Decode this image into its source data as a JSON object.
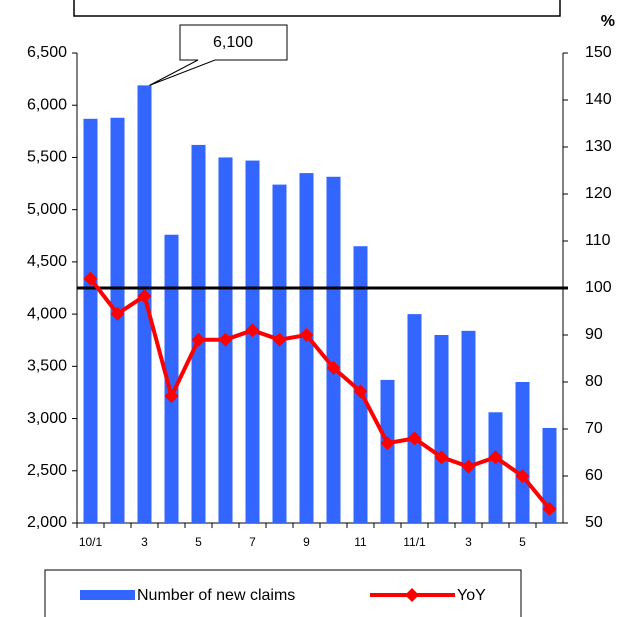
{
  "chart_data": {
    "type": "bar",
    "categories": [
      "10/1",
      null,
      "3",
      null,
      "5",
      null,
      "7",
      null,
      "9",
      null,
      "11",
      null,
      "11/1",
      null,
      "3",
      null,
      "5",
      null
    ],
    "series": [
      {
        "name": "Number of new claims",
        "color": "#3366ff",
        "type": "bar",
        "values": [
          5870,
          5880,
          6190,
          4760,
          5620,
          5500,
          5470,
          5240,
          5350,
          5315,
          4650,
          3370,
          4000,
          3800,
          3840,
          3060,
          3350,
          2910
        ]
      },
      {
        "name": "YoY",
        "color": "#ff0000",
        "type": "line",
        "axis": "y2",
        "values": [
          102,
          94.5,
          98.3,
          77,
          89,
          89,
          91,
          89,
          90,
          83,
          78,
          67,
          68,
          64,
          62,
          64,
          60,
          53
        ]
      }
    ],
    "ylim": [
      2000,
      6500
    ],
    "yticks": [
      {
        "value": 2000,
        "label": "2,000"
      },
      {
        "value": 2500,
        "label": "2,500"
      },
      {
        "value": 3000,
        "label": "3,000"
      },
      {
        "value": 3500,
        "label": "3,500"
      },
      {
        "value": 4000,
        "label": "4,000"
      },
      {
        "value": 4500,
        "label": "4,500"
      },
      {
        "value": 5000,
        "label": "5,000"
      },
      {
        "value": 5500,
        "label": "5,500"
      },
      {
        "value": 6000,
        "label": "6,000"
      },
      {
        "value": 6500,
        "label": "6,500"
      }
    ],
    "y2lim": [
      50,
      150
    ],
    "y2ticks": [
      50,
      60,
      70,
      80,
      90,
      100,
      110,
      120,
      130,
      140,
      150
    ],
    "y2label": "%",
    "reference_line": 100,
    "annotation": "6,100"
  }
}
